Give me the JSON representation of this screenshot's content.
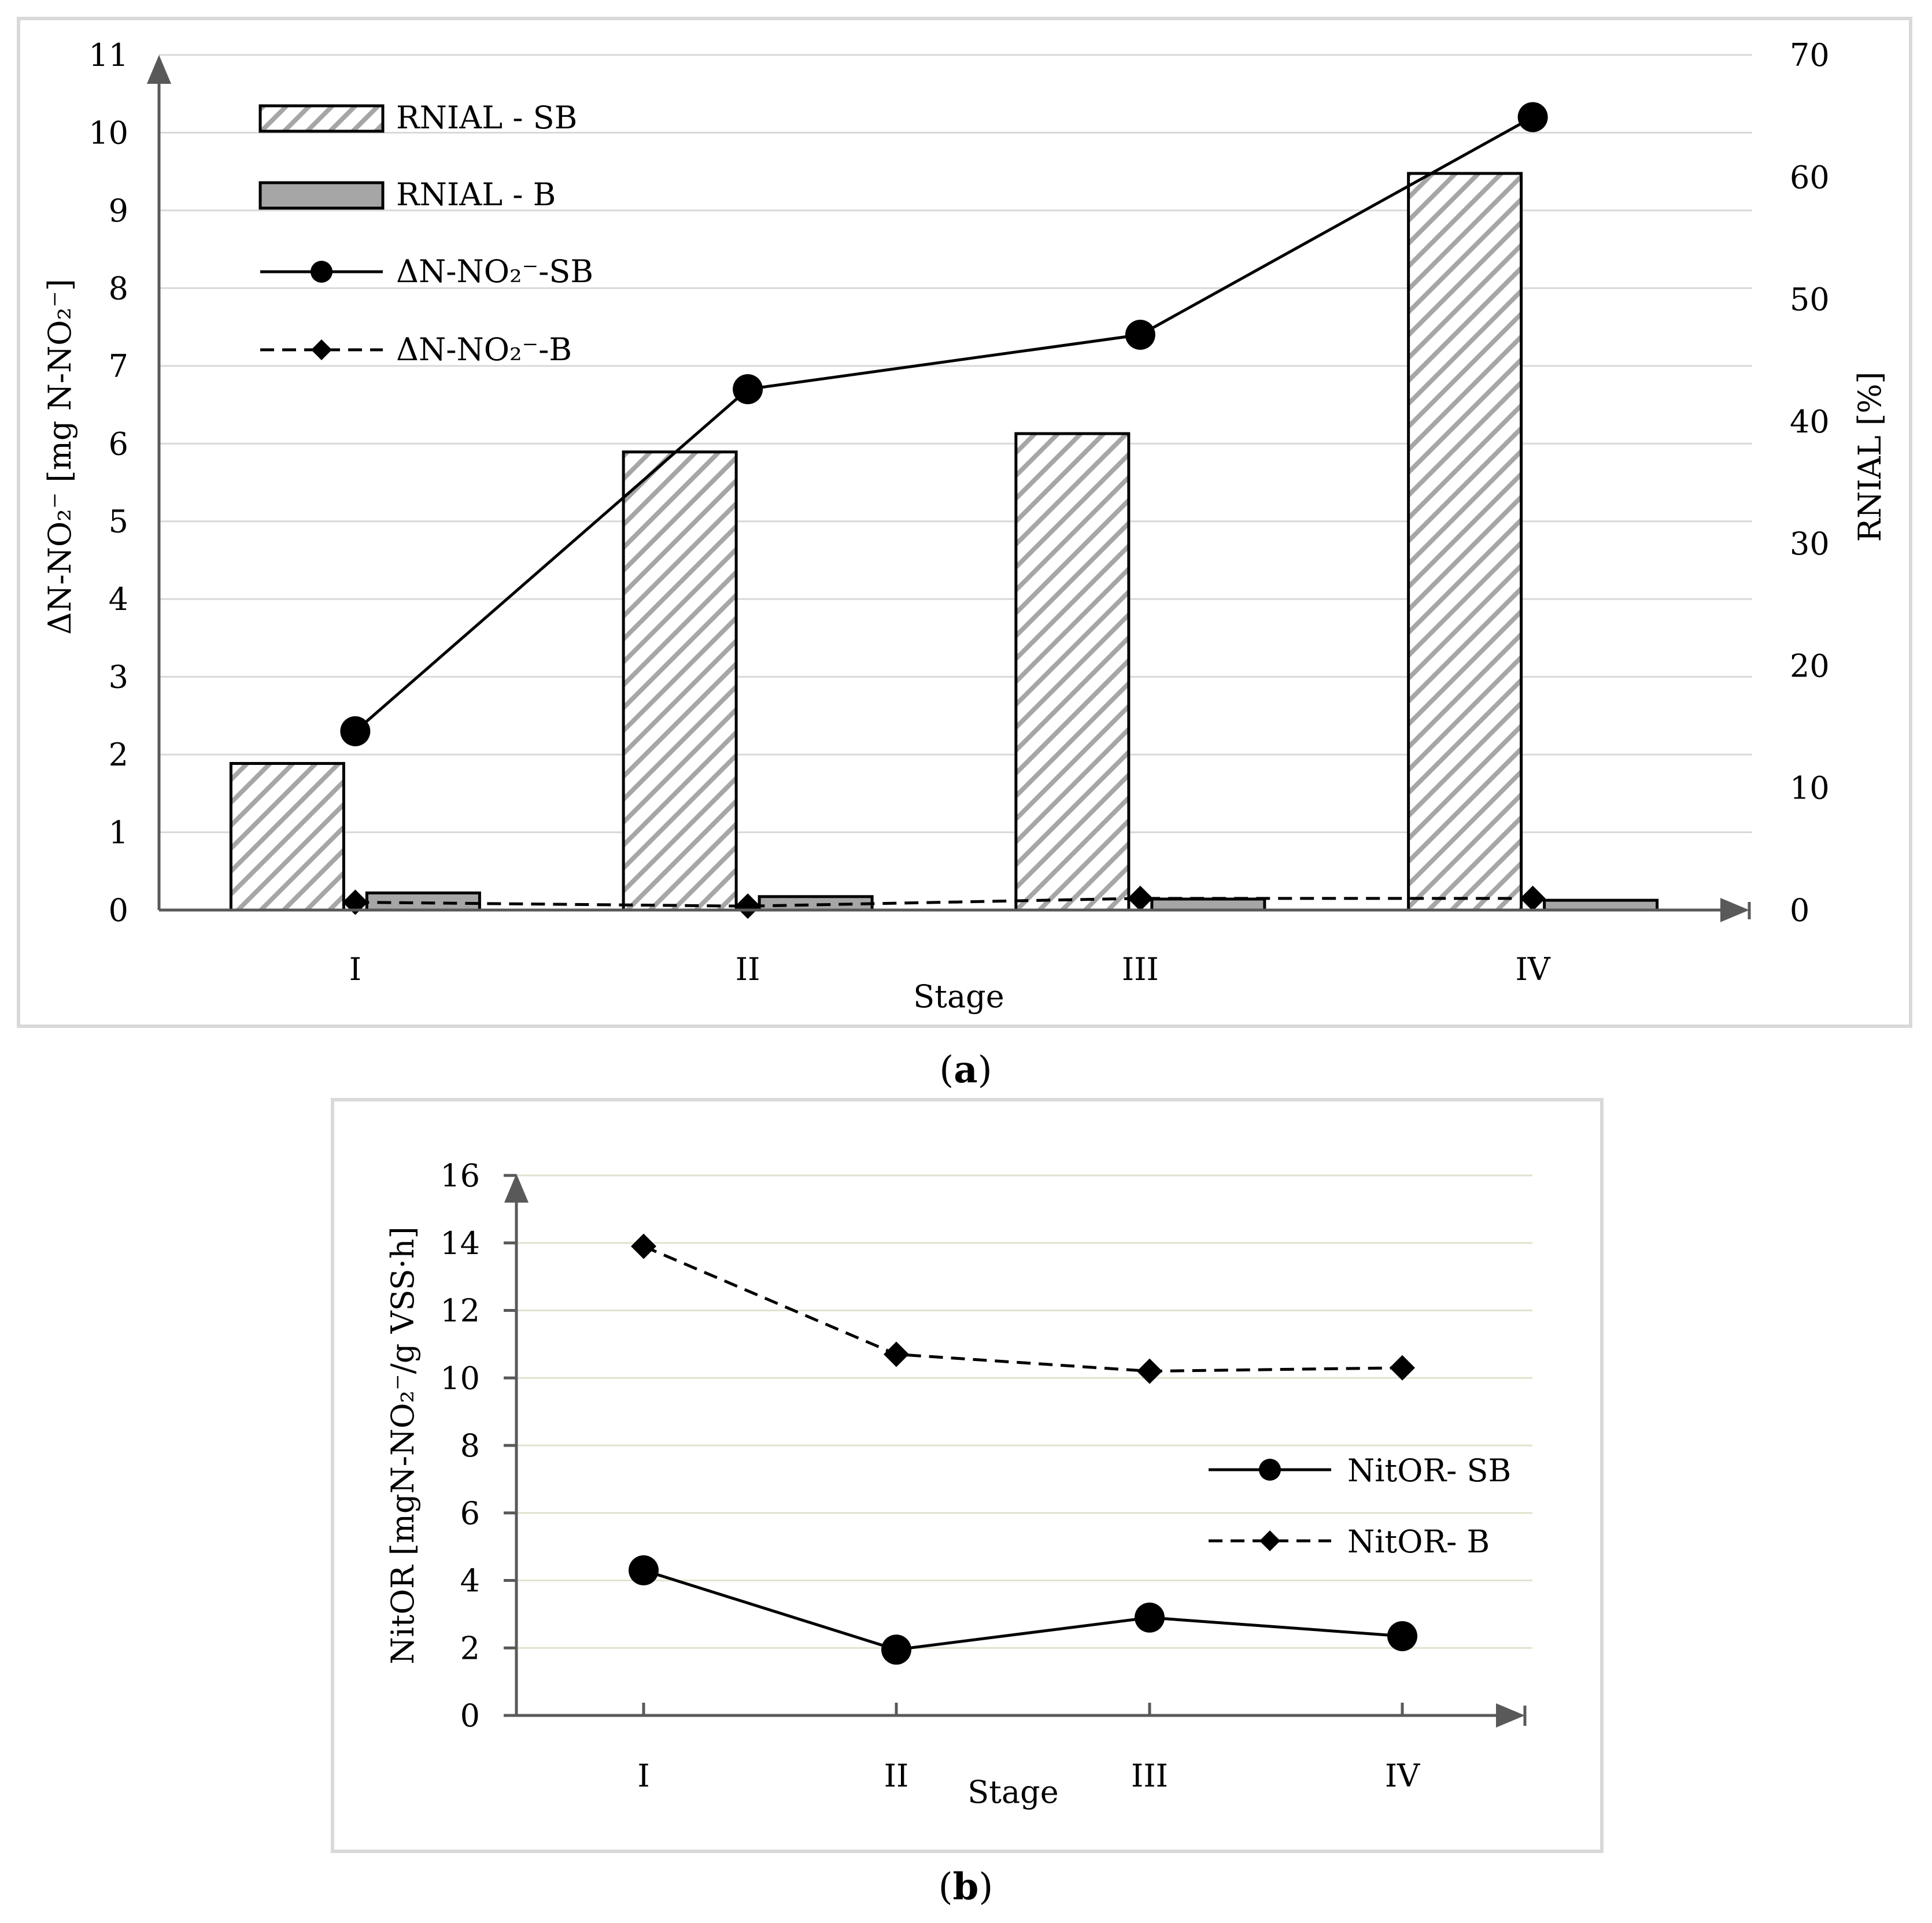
{
  "chart_data": [
    {
      "panel": "(a)",
      "type": "bar",
      "categories": [
        "I",
        "II",
        "III",
        "IV"
      ],
      "xlabel": "Stage",
      "ylabel": "ΔN-NO₂⁻ [mg N-NO₂⁻]",
      "ylabel_right": "RNIAL [%]",
      "ylim": [
        0,
        11
      ],
      "ylim_right": [
        0,
        70
      ],
      "yticks": [
        0,
        1,
        2,
        3,
        4,
        5,
        6,
        7,
        8,
        9,
        10,
        11
      ],
      "yticks_right": [
        0,
        10,
        20,
        30,
        40,
        50,
        60,
        70
      ],
      "grid": true,
      "legend_position": "top-left",
      "series": [
        {
          "name": "RNIAL - SB",
          "kind": "bar",
          "axis": "right",
          "pattern": "hatched",
          "values": [
            12,
            37.5,
            39,
            60.3
          ]
        },
        {
          "name": "RNIAL - B",
          "kind": "bar",
          "axis": "right",
          "color": "#a6a6a6",
          "values": [
            1.4,
            1.1,
            0.9,
            0.8
          ]
        },
        {
          "name": "ΔN-NO₂⁻-SB",
          "kind": "line",
          "axis": "left",
          "marker": "circle",
          "style": "solid",
          "values": [
            2.3,
            6.7,
            7.4,
            10.2
          ]
        },
        {
          "name": "ΔN-NO₂⁻-B",
          "kind": "line",
          "axis": "left",
          "marker": "diamond",
          "style": "dashed",
          "values": [
            0.1,
            0.05,
            0.15,
            0.15
          ]
        }
      ]
    },
    {
      "panel": "(b)",
      "type": "line",
      "categories": [
        "I",
        "II",
        "III",
        "IV"
      ],
      "xlabel": "Stage",
      "ylabel": "NitOR [mgN-NO₂⁻/g VSS·h]",
      "ylim": [
        0,
        16
      ],
      "yticks": [
        0,
        2,
        4,
        6,
        8,
        10,
        12,
        14,
        16
      ],
      "grid": true,
      "legend_position": "center-right",
      "series": [
        {
          "name": "NitOR- SB",
          "marker": "circle",
          "style": "solid",
          "values": [
            4.3,
            1.95,
            2.9,
            2.35
          ]
        },
        {
          "name": "NitOR- B",
          "marker": "diamond",
          "style": "dashed",
          "values": [
            13.9,
            10.7,
            10.2,
            10.3
          ]
        }
      ]
    }
  ]
}
